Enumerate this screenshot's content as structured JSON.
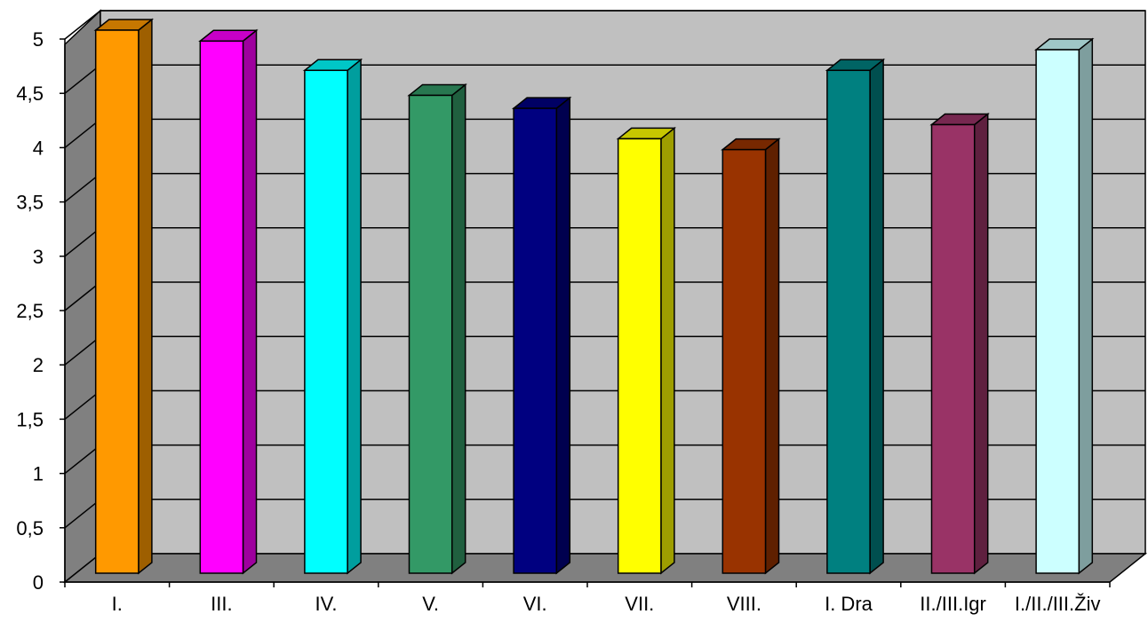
{
  "chart_data": {
    "type": "bar",
    "categories": [
      "I.",
      "III.",
      "IV.",
      "V.",
      "VI.",
      "VII.",
      "VIII.",
      "I. Dra",
      "II./III.Igr",
      "I./II./III.Živ"
    ],
    "values": [
      5.0,
      4.9,
      4.63,
      4.4,
      4.28,
      4.0,
      3.9,
      4.63,
      4.13,
      4.82
    ],
    "colors": [
      "#FF9900",
      "#FF00FF",
      "#00FFFF",
      "#339966",
      "#000080",
      "#FFFF00",
      "#993300",
      "#008080",
      "#993366",
      "#CCFFFF"
    ],
    "yticks": [
      "0",
      "0,5",
      "1",
      "1,5",
      "2",
      "2,5",
      "3",
      "3,5",
      "4",
      "4,5",
      "5"
    ],
    "ylim": [
      0,
      5
    ],
    "title": "",
    "xlabel": "",
    "ylabel": "",
    "grid": true,
    "style": "3d-column"
  }
}
